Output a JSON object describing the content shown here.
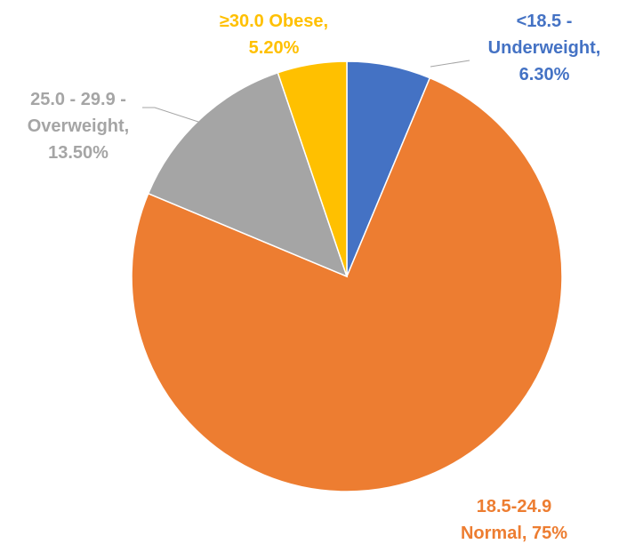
{
  "chart_data": {
    "type": "pie",
    "values": [
      6.3,
      75,
      13.5,
      5.2
    ],
    "value_labels": [
      [
        "<18.5 -",
        "Underweight,",
        "6.30%"
      ],
      [
        "18.5-24.9",
        "Normal, 75%"
      ],
      [
        "25.0 - 29.9 -",
        "Overweight,",
        "13.50%"
      ],
      [
        "≥30.0 Obese,",
        "5.20%"
      ]
    ],
    "colors": [
      "#4472c4",
      "#ed7d31",
      "#a5a5a5",
      "#ffc000"
    ]
  }
}
